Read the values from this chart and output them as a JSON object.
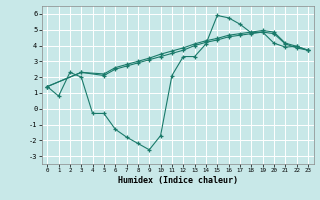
{
  "background_color": "#c8e8e8",
  "line_color": "#1a7a6a",
  "grid_color": "#ffffff",
  "xlabel": "Humidex (Indice chaleur)",
  "xlim": [
    -0.5,
    23.5
  ],
  "ylim": [
    -3.5,
    6.5
  ],
  "xticks": [
    0,
    1,
    2,
    3,
    4,
    5,
    6,
    7,
    8,
    9,
    10,
    11,
    12,
    13,
    14,
    15,
    16,
    17,
    18,
    19,
    20,
    21,
    22,
    23
  ],
  "yticks": [
    -3,
    -2,
    -1,
    0,
    1,
    2,
    3,
    4,
    5,
    6
  ],
  "curve1_x": [
    0,
    1,
    2,
    3,
    4,
    5,
    6,
    7,
    8,
    9,
    10,
    11,
    12,
    13,
    14,
    15,
    16,
    17,
    18,
    19,
    20,
    21,
    22,
    23
  ],
  "curve1_y": [
    1.4,
    0.8,
    2.3,
    2.0,
    -0.3,
    -0.3,
    -1.3,
    -1.8,
    -2.2,
    -2.6,
    -1.7,
    2.1,
    3.3,
    3.3,
    4.1,
    5.9,
    5.75,
    5.35,
    4.8,
    4.85,
    4.15,
    3.9,
    3.95,
    3.7
  ],
  "curve2_x": [
    0,
    3,
    5,
    6,
    7,
    8,
    9,
    10,
    11,
    12,
    13,
    14,
    15,
    16,
    17,
    18,
    19,
    20,
    21,
    22,
    23
  ],
  "curve2_y": [
    1.4,
    2.3,
    2.2,
    2.6,
    2.8,
    3.0,
    3.2,
    3.45,
    3.65,
    3.85,
    4.1,
    4.3,
    4.45,
    4.65,
    4.75,
    4.85,
    4.95,
    4.85,
    4.15,
    3.95,
    3.7
  ],
  "curve3_x": [
    0,
    3,
    5,
    6,
    7,
    8,
    9,
    10,
    11,
    12,
    13,
    14,
    15,
    16,
    17,
    18,
    19,
    20,
    21,
    22,
    23
  ],
  "curve3_y": [
    1.4,
    2.3,
    2.1,
    2.5,
    2.7,
    2.9,
    3.1,
    3.3,
    3.5,
    3.7,
    4.0,
    4.2,
    4.35,
    4.55,
    4.65,
    4.75,
    4.85,
    4.75,
    4.1,
    3.85,
    3.7
  ]
}
